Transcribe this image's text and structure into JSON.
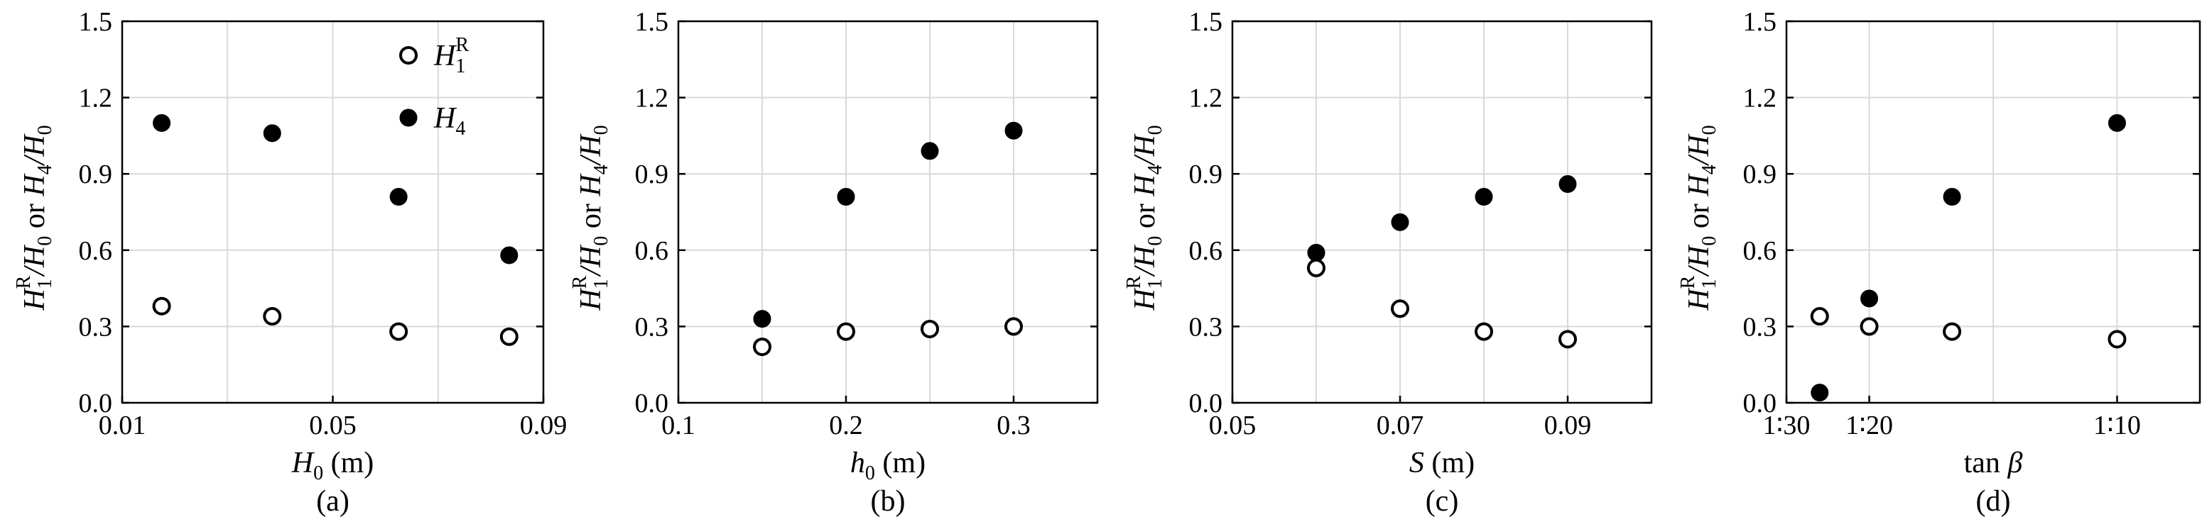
{
  "chart_data": [
    {
      "type": "scatter",
      "panel_label": "(a)",
      "xlabel": {
        "main": "H",
        "sub": "0",
        "unit": " (m)"
      },
      "ylabel": {
        "a": "H",
        "a_sub": "1",
        "a_sup": "R",
        "b": "/H",
        "b_sub": "0",
        "mid": " or ",
        "c": "H",
        "c_sub": "4",
        "d": "/H",
        "d_sub": "0"
      },
      "xlim": [
        0.01,
        0.09
      ],
      "ylim": [
        0.0,
        1.5
      ],
      "xticks": [
        0.01,
        0.05,
        0.09
      ],
      "xtick_labels": [
        "0.01",
        "0.05",
        "0.09"
      ],
      "xgrid": [
        0.01,
        0.03,
        0.05,
        0.07,
        0.09
      ],
      "yticks": [
        0.0,
        0.3,
        0.6,
        0.9,
        1.2,
        1.5
      ],
      "ytick_labels": [
        "0.0",
        "0.3",
        "0.6",
        "0.9",
        "1.2",
        "1.5"
      ],
      "grid": true,
      "legend_position": "top-right",
      "legend": [
        {
          "marker": "open",
          "main": "H",
          "sub": "1",
          "sup": "R"
        },
        {
          "marker": "filled",
          "main": "H",
          "sub": "4",
          "sup": ""
        }
      ],
      "series": [
        {
          "marker": "open",
          "x": [
            0.0175,
            0.0385,
            0.0625,
            0.0835
          ],
          "y": [
            0.38,
            0.34,
            0.28,
            0.26
          ]
        },
        {
          "marker": "filled",
          "x": [
            0.0175,
            0.0385,
            0.0625,
            0.0835
          ],
          "y": [
            1.1,
            1.06,
            0.81,
            0.58
          ]
        }
      ]
    },
    {
      "type": "scatter",
      "panel_label": "(b)",
      "xlabel": {
        "main": "h",
        "sub": "0",
        "unit": " (m)"
      },
      "ylabel": {
        "a": "H",
        "a_sub": "1",
        "a_sup": "R",
        "b": "/H",
        "b_sub": "0",
        "mid": " or ",
        "c": "H",
        "c_sub": "4",
        "d": "/H",
        "d_sub": "0"
      },
      "xlim": [
        0.1,
        0.35
      ],
      "ylim": [
        0.0,
        1.5
      ],
      "xticks": [
        0.1,
        0.2,
        0.3
      ],
      "xtick_labels": [
        "0.1",
        "0.2",
        "0.3"
      ],
      "xgrid": [
        0.1,
        0.15,
        0.2,
        0.25,
        0.3
      ],
      "yticks": [
        0.0,
        0.3,
        0.6,
        0.9,
        1.2,
        1.5
      ],
      "ytick_labels": [
        "0.0",
        "0.3",
        "0.6",
        "0.9",
        "1.2",
        "1.5"
      ],
      "grid": true,
      "series": [
        {
          "marker": "open",
          "x": [
            0.15,
            0.2,
            0.25,
            0.3
          ],
          "y": [
            0.22,
            0.28,
            0.29,
            0.3
          ]
        },
        {
          "marker": "filled",
          "x": [
            0.15,
            0.2,
            0.25,
            0.3
          ],
          "y": [
            0.33,
            0.81,
            0.99,
            1.07
          ]
        }
      ]
    },
    {
      "type": "scatter",
      "panel_label": "(c)",
      "xlabel": {
        "main": "S",
        "sub": "",
        "unit": " (m)"
      },
      "ylabel": {
        "a": "H",
        "a_sub": "1",
        "a_sup": "R",
        "b": "/H",
        "b_sub": "0",
        "mid": " or ",
        "c": "H",
        "c_sub": "4",
        "d": "/H",
        "d_sub": "0"
      },
      "xlim": [
        0.05,
        0.1
      ],
      "ylim": [
        0.0,
        1.5
      ],
      "xticks": [
        0.05,
        0.07,
        0.09
      ],
      "xtick_labels": [
        "0.05",
        "0.07",
        "0.09"
      ],
      "xgrid": [
        0.05,
        0.06,
        0.07,
        0.08,
        0.09
      ],
      "yticks": [
        0.0,
        0.3,
        0.6,
        0.9,
        1.2,
        1.5
      ],
      "ytick_labels": [
        "0.0",
        "0.3",
        "0.6",
        "0.9",
        "1.2",
        "1.5"
      ],
      "grid": true,
      "series": [
        {
          "marker": "open",
          "x": [
            0.06,
            0.07,
            0.08,
            0.09
          ],
          "y": [
            0.53,
            0.37,
            0.28,
            0.25
          ]
        },
        {
          "marker": "filled",
          "x": [
            0.06,
            0.07,
            0.08,
            0.09
          ],
          "y": [
            0.59,
            0.71,
            0.81,
            0.86
          ]
        }
      ]
    },
    {
      "type": "scatter",
      "panel_label": "(d)",
      "xlabel": {
        "main": "tan ",
        "greek": "β",
        "sub": "",
        "unit": ""
      },
      "ylabel": {
        "a": "H",
        "a_sub": "1",
        "a_sup": "R",
        "b": "/H",
        "b_sub": "0",
        "mid": " or ",
        "c": "H",
        "c_sub": "4",
        "d": "/H",
        "d_sub": "0"
      },
      "xlim": [
        0.0333,
        0.1167
      ],
      "ylim": [
        0.0,
        1.5
      ],
      "xticks": [
        0.0333,
        0.05,
        0.1
      ],
      "xtick_labels": [
        "1∶30",
        "1∶20",
        "1∶10"
      ],
      "xgrid": [
        0.0333,
        0.05,
        0.075,
        0.1
      ],
      "yticks": [
        0.0,
        0.3,
        0.6,
        0.9,
        1.2,
        1.5
      ],
      "ytick_labels": [
        "0.0",
        "0.3",
        "0.6",
        "0.9",
        "1.2",
        "1.5"
      ],
      "grid": true,
      "series": [
        {
          "marker": "open",
          "x": [
            0.04,
            0.05,
            0.0667,
            0.1
          ],
          "y": [
            0.34,
            0.3,
            0.28,
            0.25
          ]
        },
        {
          "marker": "filled",
          "x": [
            0.04,
            0.05,
            0.0667,
            0.1
          ],
          "y": [
            0.04,
            0.41,
            0.81,
            1.1
          ]
        }
      ]
    }
  ]
}
